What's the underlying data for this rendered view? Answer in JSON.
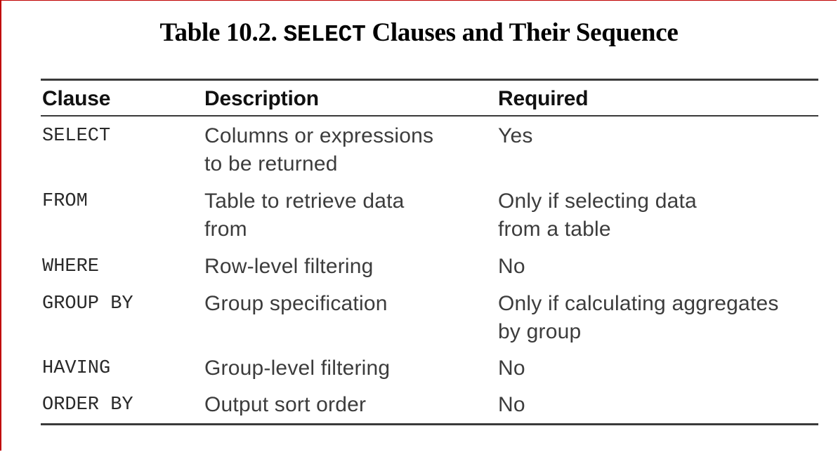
{
  "title": {
    "prefix": "Table 10.2. ",
    "code": "SELECT",
    "suffix": " Clauses and Their Sequence"
  },
  "table": {
    "headers": [
      "Clause",
      "Description",
      "Required"
    ],
    "rows": [
      {
        "clause": "SELECT",
        "description": "Columns or expressions\nto be returned",
        "required": "Yes"
      },
      {
        "clause": "FROM",
        "description": "Table to retrieve data\nfrom",
        "required": "Only if selecting data\nfrom a table"
      },
      {
        "clause": "WHERE",
        "description": "Row-level filtering",
        "required": "No"
      },
      {
        "clause": "GROUP BY",
        "description": "Group specification",
        "required": "Only if calculating aggregates\nby group"
      },
      {
        "clause": "HAVING",
        "description": "Group-level filtering",
        "required": "No"
      },
      {
        "clause": "ORDER BY",
        "description": "Output sort order",
        "required": "No"
      }
    ]
  }
}
